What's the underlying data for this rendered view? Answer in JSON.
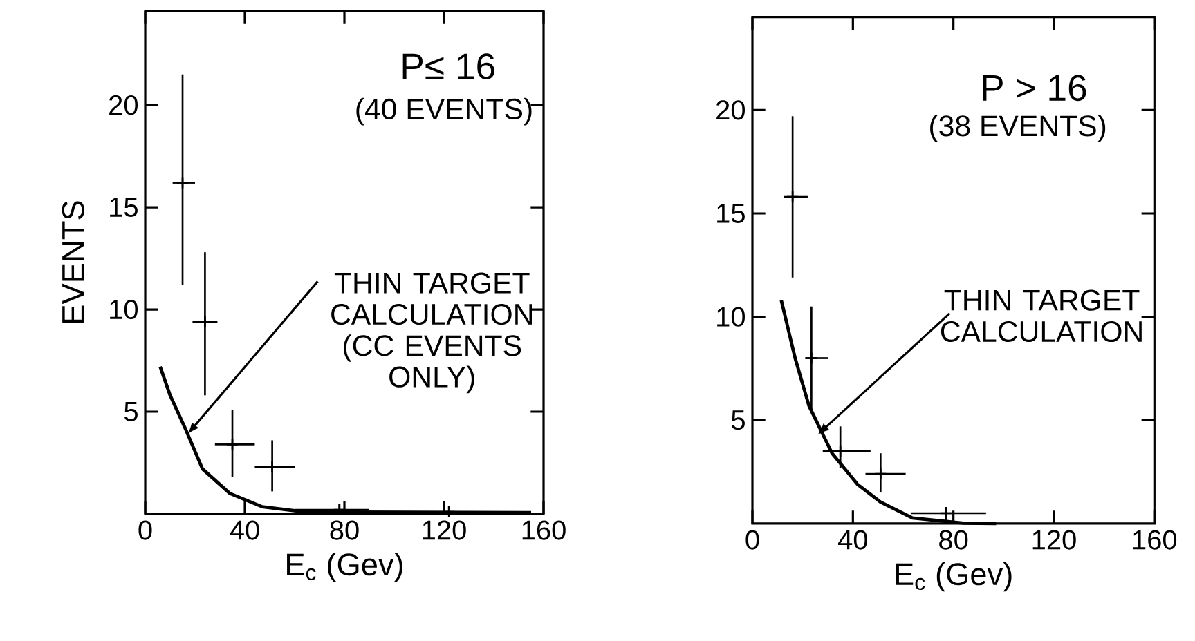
{
  "chart_data": [
    {
      "type": "scatter",
      "title": "P≤ 16",
      "subtitle": "(40 EVENTS)",
      "xlabel": "E$_{c}$ (Gev)",
      "ylabel": "EVENTS",
      "xlim": [
        0,
        160
      ],
      "ylim": [
        0,
        24.6
      ],
      "xticks": [
        0,
        40,
        80,
        120,
        160
      ],
      "yticks": [
        5,
        10,
        15,
        20
      ],
      "annotations": [
        {
          "text": "THIN TARGET CALCULATION (CC EVENTS ONLY)",
          "x": 17,
          "y": 3.9
        }
      ],
      "series": [
        {
          "type": "scatter",
          "color": "#000000",
          "marker": "cross",
          "x": [
            15,
            24,
            35,
            51,
            78,
            122
          ],
          "values": [
            16.2,
            9.4,
            3.4,
            2.3,
            0.2,
            0.1
          ],
          "errors": [
            [
              11.2,
              21.5
            ],
            [
              5.8,
              12.8
            ],
            [
              1.8,
              5.1
            ],
            [
              1.1,
              3.6
            ],
            [
              0,
              0.5
            ],
            [
              0,
              0.4
            ]
          ],
          "xerrors": [
            [
              11,
              20
            ],
            [
              19,
              29
            ],
            [
              28,
              44
            ],
            [
              44,
              60
            ],
            [
              60,
              90
            ],
            [
              90,
              155
            ]
          ]
        },
        {
          "type": "line",
          "color": "#000000",
          "x": [
            6,
            10,
            16,
            23,
            34,
            47,
            64,
            100,
            155
          ],
          "values": [
            7.2,
            5.8,
            4.2,
            2.2,
            1.0,
            0.35,
            0.1,
            0.08,
            0.05
          ]
        }
      ]
    },
    {
      "type": "scatter",
      "title": "P > 16",
      "subtitle": "(38 EVENTS)",
      "xlabel": "E$_{c}$ (Gev)",
      "xlim": [
        0,
        160
      ],
      "ylim": [
        0,
        24.5
      ],
      "xticks": [
        0,
        40,
        80,
        120,
        160
      ],
      "yticks": [
        5,
        10,
        15,
        20
      ],
      "annotations": [
        {
          "text": "THIN TARGET CALCULATION",
          "x": 26,
          "y": 4.3
        }
      ],
      "series": [
        {
          "type": "scatter",
          "color": "#000000",
          "marker": "cross",
          "x": [
            16,
            23.5,
            35,
            51,
            77
          ],
          "values": [
            15.8,
            8.0,
            3.5,
            2.4,
            0.5
          ],
          "errors": [
            [
              11.9,
              19.7
            ],
            [
              5.5,
              10.5
            ],
            [
              2.7,
              4.7
            ],
            [
              1.5,
              3.4
            ],
            [
              0,
              0.8
            ]
          ],
          "xerrors": [
            [
              12.5,
              22
            ],
            [
              21,
              30
            ],
            [
              28,
              47
            ],
            [
              45,
              61
            ],
            [
              63,
              93
            ]
          ]
        },
        {
          "type": "line",
          "color": "#000000",
          "x": [
            11.5,
            17,
            22.5,
            31.7,
            41.8,
            50.9,
            63.7,
            84,
            97
          ],
          "values": [
            10.8,
            8.0,
            5.7,
            3.4,
            1.9,
            1.05,
            0.27,
            0.02,
            0
          ]
        }
      ]
    }
  ]
}
